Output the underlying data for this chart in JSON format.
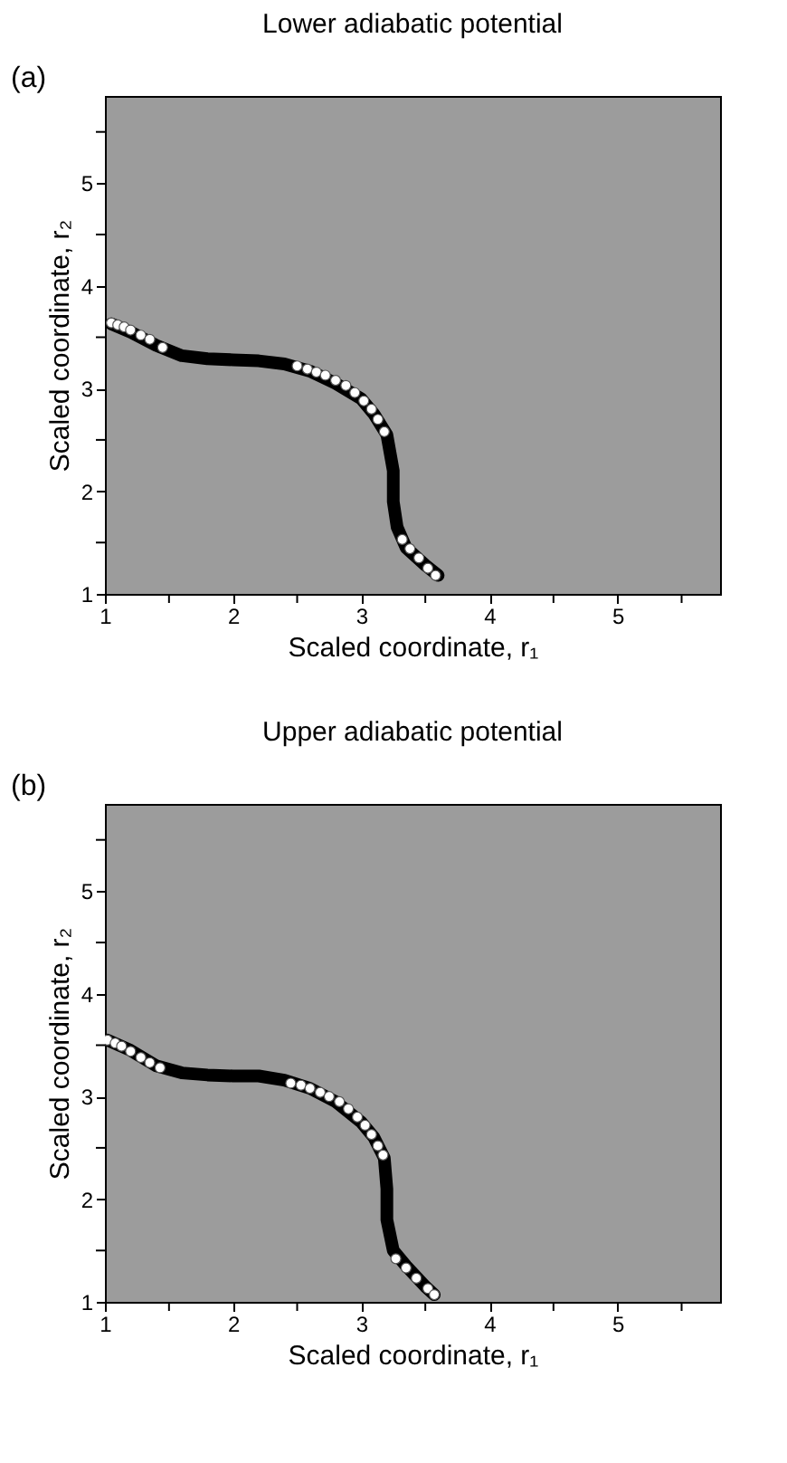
{
  "chart_data": [
    {
      "type": "line",
      "title": "Lower adiabatic potential",
      "xlabel": "Scaled coordinate, r₁",
      "ylabel": "Scaled coordinate, r₂",
      "annotations": [
        "(a)"
      ],
      "xlim": [
        1,
        5.8
      ],
      "ylim": [
        1,
        5.85
      ],
      "xticks": [
        1,
        {
          "value": 1.5,
          "label": null
        },
        2,
        {
          "value": 2.5,
          "label": null
        },
        3,
        {
          "value": 3.5,
          "label": null
        },
        4,
        {
          "value": 4.5,
          "label": null
        },
        5,
        {
          "value": 5.5,
          "label": null
        }
      ],
      "yticks": [
        1,
        {
          "value": 1.5,
          "label": null
        },
        2,
        {
          "value": 2.5,
          "label": null
        },
        3,
        {
          "value": 3.5,
          "label": null
        },
        4,
        {
          "value": 4.5,
          "label": null
        },
        5,
        {
          "value": 5.5,
          "label": null
        }
      ],
      "grid": false,
      "series": [
        {
          "color": "#000000",
          "x": [
            1.05,
            1.2,
            1.4,
            1.6,
            1.8,
            2.0,
            2.2,
            2.4,
            2.6,
            2.8,
            3.0,
            3.1,
            3.2,
            3.25,
            3.25,
            3.28,
            3.35,
            3.5,
            3.6
          ],
          "values": [
            3.63,
            3.55,
            3.42,
            3.32,
            3.29,
            3.28,
            3.27,
            3.24,
            3.17,
            3.05,
            2.9,
            2.75,
            2.55,
            2.2,
            1.9,
            1.65,
            1.45,
            1.28,
            1.18
          ]
        },
        {
          "type": "scatter",
          "marker": "circle",
          "color": "#ffffff",
          "x": [
            1.05,
            1.1,
            1.15,
            1.2,
            1.28,
            1.35,
            1.45,
            2.5,
            2.58,
            2.65,
            2.72,
            2.8,
            2.88,
            2.95,
            3.02,
            3.08,
            3.13,
            3.18,
            3.32,
            3.38,
            3.45,
            3.52,
            3.58
          ],
          "values": [
            3.64,
            3.62,
            3.6,
            3.57,
            3.52,
            3.48,
            3.4,
            3.22,
            3.19,
            3.16,
            3.13,
            3.08,
            3.03,
            2.96,
            2.88,
            2.8,
            2.7,
            2.58,
            1.53,
            1.44,
            1.35,
            1.25,
            1.18
          ]
        }
      ]
    },
    {
      "type": "line",
      "title": "Upper adiabatic potential",
      "xlabel": "Scaled coordinate, r₁",
      "ylabel": "Scaled coordinate, r₂",
      "annotations": [
        "(b)"
      ],
      "xlim": [
        1,
        5.8
      ],
      "ylim": [
        1,
        5.85
      ],
      "xticks": [
        1,
        {
          "value": 1.5,
          "label": null
        },
        2,
        {
          "value": 2.5,
          "label": null
        },
        3,
        {
          "value": 3.5,
          "label": null
        },
        4,
        {
          "value": 4.5,
          "label": null
        },
        5,
        {
          "value": 5.5,
          "label": null
        }
      ],
      "yticks": [
        1,
        {
          "value": 1.5,
          "label": null
        },
        2,
        {
          "value": 2.5,
          "label": null
        },
        3,
        {
          "value": 3.5,
          "label": null
        },
        4,
        {
          "value": 4.5,
          "label": null
        },
        5,
        {
          "value": 5.5,
          "label": null
        }
      ],
      "grid": false,
      "series": [
        {
          "color": "#000000",
          "x": [
            1.02,
            1.2,
            1.4,
            1.6,
            1.8,
            2.0,
            2.2,
            2.4,
            2.6,
            2.8,
            3.0,
            3.1,
            3.18,
            3.2,
            3.2,
            3.25,
            3.35,
            3.5,
            3.57
          ],
          "values": [
            3.55,
            3.45,
            3.3,
            3.23,
            3.21,
            3.2,
            3.2,
            3.16,
            3.08,
            2.95,
            2.75,
            2.6,
            2.4,
            2.1,
            1.8,
            1.5,
            1.35,
            1.15,
            1.07
          ]
        },
        {
          "type": "scatter",
          "marker": "circle",
          "color": "#ffffff",
          "x": [
            1.02,
            1.08,
            1.13,
            1.2,
            1.28,
            1.35,
            1.43,
            2.45,
            2.53,
            2.6,
            2.68,
            2.75,
            2.83,
            2.9,
            2.97,
            3.03,
            3.08,
            3.13,
            3.17,
            3.27,
            3.35,
            3.43,
            3.52,
            3.57
          ],
          "values": [
            3.55,
            3.52,
            3.49,
            3.44,
            3.38,
            3.33,
            3.28,
            3.13,
            3.11,
            3.08,
            3.04,
            3.0,
            2.95,
            2.88,
            2.8,
            2.72,
            2.63,
            2.52,
            2.43,
            1.42,
            1.33,
            1.23,
            1.13,
            1.07
          ]
        }
      ]
    }
  ]
}
